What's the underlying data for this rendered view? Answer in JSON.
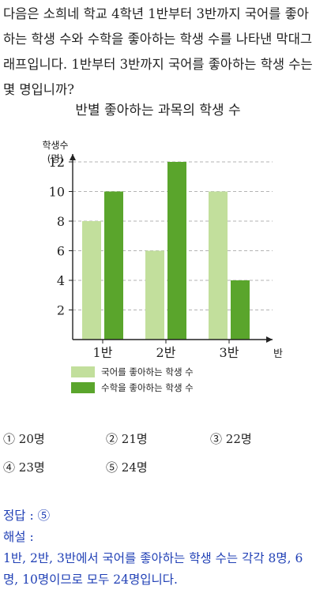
{
  "question": "다음은 소희네 학교 4학년 1반부터 3반까지 국어를 좋아하는 학생 수와 수학을 좋아하는 학생 수를 나타낸 막대그래프입니다. 1반부터 3반까지 국어를 좋아하는 학생 수는 몇 명입니까?",
  "chart_data": {
    "type": "bar",
    "title": "반별 좋아하는 과목의 학생 수",
    "categories": [
      "1반",
      "2반",
      "3반"
    ],
    "series": [
      {
        "name": "국어를 좋아하는 학생 수",
        "values": [
          8,
          6,
          10
        ],
        "color": "#c2df9c"
      },
      {
        "name": "수학을 좋아하는 학생 수",
        "values": [
          10,
          12,
          4
        ],
        "color": "#5aa52c"
      }
    ],
    "ylabel": "학생수",
    "yunit": "(명)",
    "xlabel": "반",
    "ylim": [
      0,
      12
    ],
    "yticks": [
      2,
      4,
      6,
      8,
      10,
      12
    ],
    "grid": true,
    "legend_position": "bottom"
  },
  "choices": [
    {
      "marker": "①",
      "text": "20명"
    },
    {
      "marker": "②",
      "text": "21명"
    },
    {
      "marker": "③",
      "text": "22명"
    },
    {
      "marker": "④",
      "text": "23명"
    },
    {
      "marker": "⑤",
      "text": "24명"
    }
  ],
  "answer": {
    "line": "정답 : ⑤",
    "explanation_label": "해설 :",
    "explanation": "1반, 2반, 3반에서 국어를 좋아하는 학생 수는 각각 8명, 6명, 10명이므로 모두 24명입니다."
  }
}
